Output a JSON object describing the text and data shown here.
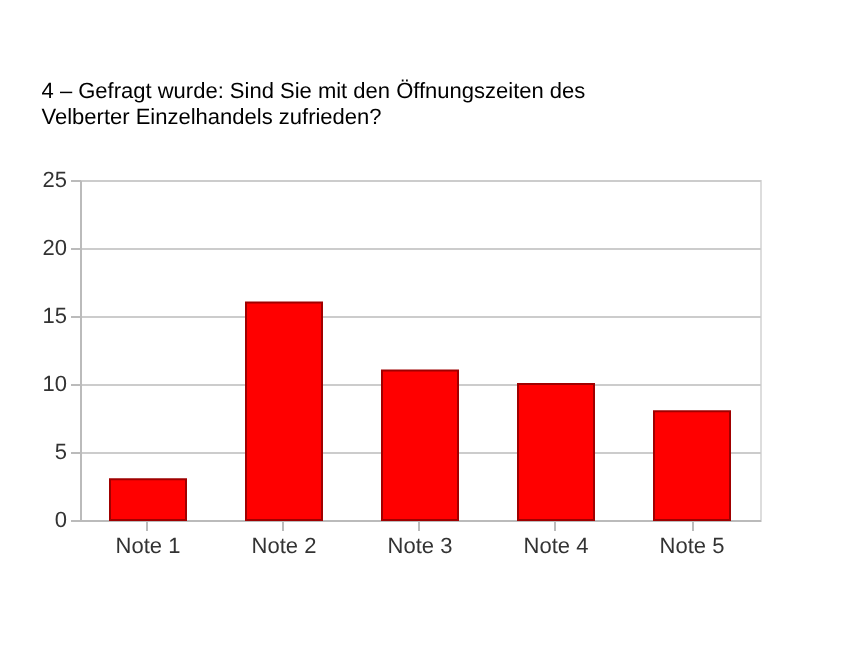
{
  "chart_data": {
    "type": "bar",
    "title": "4 – Gefragt wurde: Sind Sie mit den Öffnungszeiten des Velberter Einzelhandels zufrieden?",
    "categories": [
      "Note 1",
      "Note 2",
      "Note 3",
      "Note 4",
      "Note 5"
    ],
    "values": [
      3,
      16,
      11,
      10,
      8
    ],
    "color": "#ff0000",
    "ylim": [
      0,
      25
    ],
    "yticks": [
      0,
      5,
      10,
      15,
      20,
      25
    ],
    "grid": "y"
  }
}
